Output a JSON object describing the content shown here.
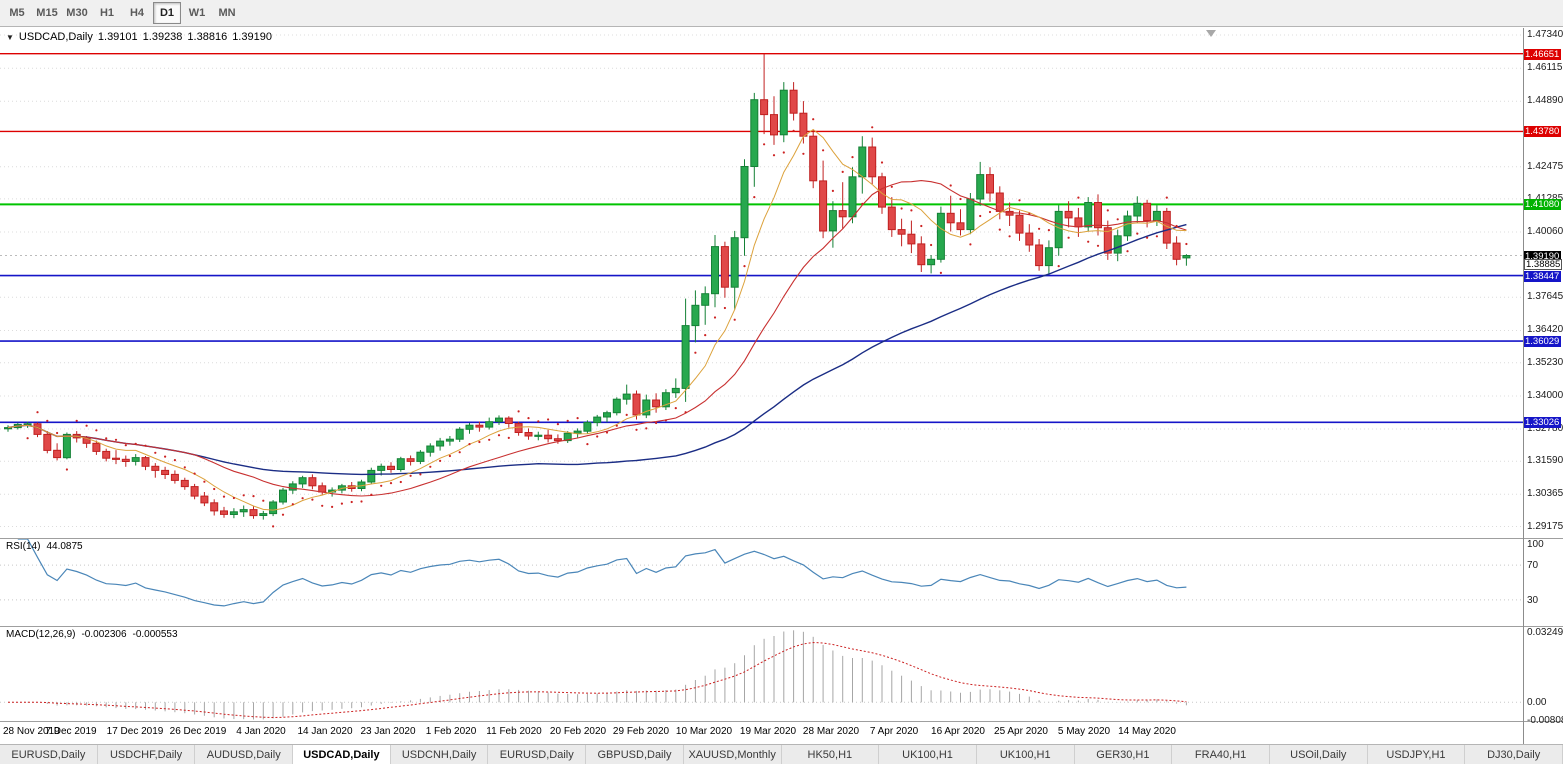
{
  "toolbar": {
    "timeframes": [
      {
        "label": "M5",
        "active": false
      },
      {
        "label": "M15",
        "active": false
      },
      {
        "label": "M30",
        "active": false
      },
      {
        "label": "H1",
        "active": false
      },
      {
        "label": "H4",
        "active": false
      },
      {
        "label": "D1",
        "active": true
      },
      {
        "label": "W1",
        "active": false
      },
      {
        "label": "MN",
        "active": false
      }
    ]
  },
  "chart_header": {
    "dropdown_icon": "▼",
    "symbol": "USDCAD,Daily",
    "open": "1.39101",
    "high": "1.39238",
    "low": "1.38816",
    "close": "1.39190"
  },
  "price_axis": {
    "ticks": [
      "1.47340",
      "1.46115",
      "1.44890",
      "1.42475",
      "1.41285",
      "1.40060",
      "1.37645",
      "1.36420",
      "1.35230",
      "1.34000",
      "1.32780",
      "1.31590",
      "1.30365",
      "1.29175"
    ],
    "tags": [
      {
        "value": 1.46651,
        "label": "1.46651",
        "bg": "#dd0000",
        "fg": "#ffffff"
      },
      {
        "value": 1.4378,
        "label": "1.43780",
        "bg": "#dd0000",
        "fg": "#ffffff"
      },
      {
        "value": 1.4108,
        "label": "1.41080",
        "bg": "#00b200",
        "fg": "#ffffff"
      },
      {
        "value": 1.3919,
        "label": "1.39190",
        "bg": "#000000",
        "fg": "#ffffff"
      },
      {
        "value": 1.38885,
        "label": "1.38885",
        "bg": "#ffffff",
        "fg": "#000000",
        "border": "#555555"
      },
      {
        "value": 1.38447,
        "label": "1.38447",
        "bg": "#1515c8",
        "fg": "#ffffff"
      },
      {
        "value": 1.36029,
        "label": "1.36029",
        "bg": "#1515c8",
        "fg": "#ffffff"
      },
      {
        "value": 1.33026,
        "label": "1.33026",
        "bg": "#1515c8",
        "fg": "#ffffff"
      }
    ]
  },
  "rsi_panel": {
    "name": "RSI(14)",
    "value": "44.0875",
    "axis": [
      "100",
      "70",
      "30"
    ],
    "axis_values": [
      100,
      70,
      30
    ],
    "levels": [
      70,
      30
    ]
  },
  "macd_panel": {
    "name": "MACD(12,26,9)",
    "value_main": "-0.002306",
    "value_signal": "-0.000553",
    "axis": [
      {
        "label": "0.032493",
        "value": 0.032493
      },
      {
        "label": "0.00",
        "value": 0
      },
      {
        "label": "-0.00808",
        "value": -0.00808
      }
    ]
  },
  "date_axis": {
    "labels": [
      "28 Nov 2019",
      "7 Dec 2019",
      "17 Dec 2019",
      "26 Dec 2019",
      "4 Jan 2020",
      "14 Jan 2020",
      "23 Jan 2020",
      "1 Feb 2020",
      "11 Feb 2020",
      "20 Feb 2020",
      "29 Feb 2020",
      "10 Mar 2020",
      "19 Mar 2020",
      "28 Mar 2020",
      "7 Apr 2020",
      "16 Apr 2020",
      "25 Apr 2020",
      "5 May 2020",
      "14 May 2020"
    ]
  },
  "bottom_tabs": {
    "items": [
      {
        "label": "EURUSD,Daily",
        "active": false
      },
      {
        "label": "USDCHF,Daily",
        "active": false
      },
      {
        "label": "AUDUSD,Daily",
        "active": false
      },
      {
        "label": "USDCAD,Daily",
        "active": true
      },
      {
        "label": "USDCNH,Daily",
        "active": false
      },
      {
        "label": "EURUSD,Daily",
        "active": false
      },
      {
        "label": "GBPUSD,Daily",
        "active": false
      },
      {
        "label": "XAUUSD,Monthly",
        "active": false
      },
      {
        "label": "HK50,H1",
        "active": false
      },
      {
        "label": "UK100,H1",
        "active": false
      },
      {
        "label": "UK100,H1",
        "active": false
      },
      {
        "label": "GER30,H1",
        "active": false
      },
      {
        "label": "FRA40,H1",
        "active": false
      },
      {
        "label": "USOil,Daily",
        "active": false
      },
      {
        "label": "USDJPY,H1",
        "active": false
      },
      {
        "label": "DJ30,Daily",
        "active": false
      }
    ]
  },
  "colors": {
    "up": "#27a84e",
    "up_border": "#148136",
    "down": "#e04848",
    "down_border": "#c02020",
    "ma_fast": "#dca23c",
    "ma_mid": "#c83030",
    "ma_slow": "#1b2d85",
    "rsi": "#4a86b8",
    "macd_hist": "#a6a6a6",
    "macd_signal": "#cc2222",
    "grid": "#dcdcdc",
    "bid_line": "#bbbbbb"
  },
  "chart_data": {
    "type": "candlestick",
    "symbol": "USDCAD",
    "timeframe": "Daily",
    "last_ohlc": {
      "open": 1.39101,
      "high": 1.39238,
      "low": 1.38816,
      "close": 1.3919
    },
    "ylim": [
      1.2875,
      1.476
    ],
    "hlines": [
      {
        "value": 1.46651,
        "color": "#dd0000",
        "width": 1.4
      },
      {
        "value": 1.4378,
        "color": "#dd0000",
        "width": 1.4
      },
      {
        "value": 1.4108,
        "color": "#00c400",
        "width": 2
      },
      {
        "value": 1.38447,
        "color": "#1515c8",
        "width": 1.6
      },
      {
        "value": 1.36029,
        "color": "#1515c8",
        "width": 1.6
      },
      {
        "value": 1.33026,
        "color": "#1515c8",
        "width": 1.6
      }
    ],
    "bid_line": {
      "value": 1.3919
    },
    "indicators": {
      "rsi_period": 14,
      "macd": [
        12,
        26,
        9
      ],
      "sma_periods": [
        8,
        20,
        55
      ]
    },
    "candles": [
      [
        "2019-11-28",
        1.328,
        1.3292,
        1.3268,
        1.3283
      ],
      [
        "2019-11-29",
        1.3283,
        1.3301,
        1.3276,
        1.3295
      ],
      [
        "2019-12-02",
        1.3295,
        1.3305,
        1.3282,
        1.3297
      ],
      [
        "2019-12-03",
        1.3297,
        1.3302,
        1.3248,
        1.3258
      ],
      [
        "2019-12-04",
        1.3258,
        1.327,
        1.3188,
        1.3199
      ],
      [
        "2019-12-05",
        1.3199,
        1.3225,
        1.3162,
        1.3172
      ],
      [
        "2019-12-06",
        1.3172,
        1.3265,
        1.3166,
        1.3258
      ],
      [
        "2019-12-09",
        1.3258,
        1.327,
        1.3228,
        1.3245
      ],
      [
        "2019-12-10",
        1.3245,
        1.3252,
        1.3208,
        1.3225
      ],
      [
        "2019-12-11",
        1.3225,
        1.3235,
        1.3182,
        1.3195
      ],
      [
        "2019-12-12",
        1.3195,
        1.3205,
        1.3158,
        1.317
      ],
      [
        "2019-12-13",
        1.317,
        1.32,
        1.3148,
        1.3166
      ],
      [
        "2019-12-16",
        1.3166,
        1.318,
        1.3138,
        1.3158
      ],
      [
        "2019-12-17",
        1.3158,
        1.3185,
        1.3143,
        1.3172
      ],
      [
        "2019-12-18",
        1.3172,
        1.3178,
        1.3126,
        1.314
      ],
      [
        "2019-12-19",
        1.314,
        1.3152,
        1.3098,
        1.3125
      ],
      [
        "2019-12-20",
        1.3125,
        1.3138,
        1.3093,
        1.311
      ],
      [
        "2019-12-23",
        1.311,
        1.3125,
        1.3076,
        1.3088
      ],
      [
        "2019-12-24",
        1.3088,
        1.3098,
        1.3053,
        1.3065
      ],
      [
        "2019-12-26",
        1.3065,
        1.3075,
        1.3018,
        1.303
      ],
      [
        "2019-12-27",
        1.303,
        1.3045,
        1.2993,
        1.3005
      ],
      [
        "2019-12-30",
        1.3005,
        1.3018,
        1.2958,
        1.2975
      ],
      [
        "2019-12-31",
        1.2975,
        1.299,
        1.295,
        1.2962
      ],
      [
        "2020-01-02",
        1.2962,
        1.2985,
        1.2948,
        1.2972
      ],
      [
        "2020-01-03",
        1.2972,
        1.2995,
        1.2953,
        1.298
      ],
      [
        "2020-01-06",
        1.298,
        1.2992,
        1.2946,
        1.2958
      ],
      [
        "2020-01-07",
        1.2958,
        1.2975,
        1.2943,
        1.2965
      ],
      [
        "2020-01-08",
        1.2965,
        1.3015,
        1.2956,
        1.3008
      ],
      [
        "2020-01-09",
        1.3008,
        1.306,
        1.2999,
        1.3052
      ],
      [
        "2020-01-10",
        1.3052,
        1.3085,
        1.3038,
        1.3075
      ],
      [
        "2020-01-13",
        1.3075,
        1.3105,
        1.306,
        1.3098
      ],
      [
        "2020-01-14",
        1.3098,
        1.311,
        1.3055,
        1.3068
      ],
      [
        "2020-01-15",
        1.3068,
        1.308,
        1.3032,
        1.3045
      ],
      [
        "2020-01-16",
        1.3045,
        1.3062,
        1.3028,
        1.3052
      ],
      [
        "2020-01-17",
        1.3052,
        1.3075,
        1.304,
        1.3068
      ],
      [
        "2020-01-20",
        1.3068,
        1.3082,
        1.3046,
        1.3058
      ],
      [
        "2020-01-21",
        1.3058,
        1.309,
        1.3048,
        1.3082
      ],
      [
        "2020-01-22",
        1.3082,
        1.3135,
        1.3073,
        1.3125
      ],
      [
        "2020-01-23",
        1.3125,
        1.315,
        1.3106,
        1.314
      ],
      [
        "2020-01-24",
        1.314,
        1.3155,
        1.3116,
        1.3128
      ],
      [
        "2020-01-27",
        1.3128,
        1.3175,
        1.312,
        1.3168
      ],
      [
        "2020-01-28",
        1.3168,
        1.318,
        1.3143,
        1.3158
      ],
      [
        "2020-01-29",
        1.3158,
        1.32,
        1.3148,
        1.3192
      ],
      [
        "2020-01-30",
        1.3192,
        1.3225,
        1.3176,
        1.3215
      ],
      [
        "2020-01-31",
        1.3215,
        1.3245,
        1.3198,
        1.3233
      ],
      [
        "2020-02-03",
        1.3233,
        1.3252,
        1.3216,
        1.324
      ],
      [
        "2020-02-04",
        1.324,
        1.3285,
        1.323,
        1.3277
      ],
      [
        "2020-02-05",
        1.3277,
        1.33,
        1.326,
        1.3292
      ],
      [
        "2020-02-06",
        1.3292,
        1.3305,
        1.3268,
        1.3285
      ],
      [
        "2020-02-07",
        1.3285,
        1.332,
        1.3276,
        1.3305
      ],
      [
        "2020-02-10",
        1.3305,
        1.3328,
        1.3293,
        1.3318
      ],
      [
        "2020-02-11",
        1.3318,
        1.3325,
        1.3283,
        1.3298
      ],
      [
        "2020-02-12",
        1.3298,
        1.3305,
        1.3253,
        1.3265
      ],
      [
        "2020-02-13",
        1.3265,
        1.328,
        1.3238,
        1.3252
      ],
      [
        "2020-02-14",
        1.3252,
        1.3268,
        1.3236,
        1.3255
      ],
      [
        "2020-02-18",
        1.3255,
        1.3275,
        1.3228,
        1.3242
      ],
      [
        "2020-02-19",
        1.3242,
        1.3258,
        1.3223,
        1.3235
      ],
      [
        "2020-02-20",
        1.3235,
        1.327,
        1.3226,
        1.3262
      ],
      [
        "2020-02-21",
        1.3262,
        1.328,
        1.3246,
        1.327
      ],
      [
        "2020-02-24",
        1.327,
        1.331,
        1.326,
        1.3302
      ],
      [
        "2020-02-25",
        1.3302,
        1.333,
        1.3288,
        1.3322
      ],
      [
        "2020-02-26",
        1.3322,
        1.3345,
        1.3303,
        1.3338
      ],
      [
        "2020-02-27",
        1.3338,
        1.3395,
        1.3328,
        1.3388
      ],
      [
        "2020-02-28",
        1.3388,
        1.3442,
        1.3368,
        1.3407
      ],
      [
        "2020-03-02",
        1.3407,
        1.342,
        1.3313,
        1.333
      ],
      [
        "2020-03-03",
        1.333,
        1.3405,
        1.3318,
        1.3385
      ],
      [
        "2020-03-04",
        1.3385,
        1.341,
        1.3338,
        1.336
      ],
      [
        "2020-03-05",
        1.336,
        1.3425,
        1.3348,
        1.3412
      ],
      [
        "2020-03-06",
        1.3412,
        1.3465,
        1.3393,
        1.3428
      ],
      [
        "2020-03-09",
        1.3428,
        1.376,
        1.3378,
        1.366
      ],
      [
        "2020-03-10",
        1.366,
        1.379,
        1.3598,
        1.3735
      ],
      [
        "2020-03-11",
        1.3735,
        1.3805,
        1.3663,
        1.3778
      ],
      [
        "2020-03-12",
        1.3778,
        1.3995,
        1.3728,
        1.3952
      ],
      [
        "2020-03-13",
        1.3952,
        1.397,
        1.3763,
        1.3802
      ],
      [
        "2020-03-16",
        1.3802,
        1.401,
        1.372,
        1.3985
      ],
      [
        "2020-03-17",
        1.3985,
        1.4275,
        1.3918,
        1.4248
      ],
      [
        "2020-03-18",
        1.4248,
        1.452,
        1.4173,
        1.4495
      ],
      [
        "2020-03-19",
        1.4495,
        1.4665,
        1.4368,
        1.444
      ],
      [
        "2020-03-20",
        1.444,
        1.4508,
        1.4328,
        1.4365
      ],
      [
        "2020-03-23",
        1.4365,
        1.456,
        1.4338,
        1.453
      ],
      [
        "2020-03-24",
        1.453,
        1.456,
        1.4418,
        1.4445
      ],
      [
        "2020-03-25",
        1.4445,
        1.449,
        1.4333,
        1.436
      ],
      [
        "2020-03-26",
        1.436,
        1.4385,
        1.4168,
        1.4195
      ],
      [
        "2020-03-27",
        1.4195,
        1.427,
        1.3983,
        1.401
      ],
      [
        "2020-03-30",
        1.401,
        1.412,
        1.3948,
        1.4085
      ],
      [
        "2020-03-31",
        1.4085,
        1.419,
        1.4018,
        1.4062
      ],
      [
        "2020-04-01",
        1.4062,
        1.4245,
        1.4038,
        1.421
      ],
      [
        "2020-04-02",
        1.421,
        1.436,
        1.4148,
        1.432
      ],
      [
        "2020-04-03",
        1.432,
        1.4355,
        1.4183,
        1.421
      ],
      [
        "2020-04-06",
        1.421,
        1.4225,
        1.4073,
        1.4098
      ],
      [
        "2020-04-07",
        1.4098,
        1.4135,
        1.3988,
        1.4015
      ],
      [
        "2020-04-08",
        1.4015,
        1.4055,
        1.3953,
        1.3998
      ],
      [
        "2020-04-09",
        1.3998,
        1.4048,
        1.3928,
        1.3962
      ],
      [
        "2020-04-13",
        1.3962,
        1.399,
        1.3858,
        1.3885
      ],
      [
        "2020-04-14",
        1.3885,
        1.392,
        1.3853,
        1.3905
      ],
      [
        "2020-04-15",
        1.3905,
        1.41,
        1.3893,
        1.4075
      ],
      [
        "2020-04-16",
        1.4075,
        1.414,
        1.4008,
        1.404
      ],
      [
        "2020-04-17",
        1.404,
        1.409,
        1.3993,
        1.4015
      ],
      [
        "2020-04-20",
        1.4015,
        1.415,
        1.3998,
        1.4128
      ],
      [
        "2020-04-21",
        1.4128,
        1.4265,
        1.4103,
        1.4218
      ],
      [
        "2020-04-22",
        1.4218,
        1.4245,
        1.4118,
        1.415
      ],
      [
        "2020-04-23",
        1.415,
        1.4175,
        1.4053,
        1.4082
      ],
      [
        "2020-04-24",
        1.4082,
        1.4115,
        1.4028,
        1.4068
      ],
      [
        "2020-04-27",
        1.4068,
        1.4085,
        1.3973,
        1.4002
      ],
      [
        "2020-04-28",
        1.4002,
        1.4035,
        1.3933,
        1.3958
      ],
      [
        "2020-04-29",
        1.3958,
        1.398,
        1.3863,
        1.3882
      ],
      [
        "2020-04-30",
        1.3882,
        1.3975,
        1.3848,
        1.3948
      ],
      [
        "2020-05-01",
        1.3948,
        1.4105,
        1.3918,
        1.4082
      ],
      [
        "2020-05-04",
        1.4082,
        1.412,
        1.4023,
        1.4058
      ],
      [
        "2020-05-05",
        1.4058,
        1.4095,
        1.3988,
        1.4025
      ],
      [
        "2020-05-06",
        1.4025,
        1.4135,
        1.4008,
        1.4115
      ],
      [
        "2020-05-07",
        1.4115,
        1.4145,
        1.3993,
        1.4022
      ],
      [
        "2020-05-08",
        1.4022,
        1.4048,
        1.3903,
        1.3928
      ],
      [
        "2020-05-11",
        1.3928,
        1.4015,
        1.3898,
        1.3992
      ],
      [
        "2020-05-12",
        1.3992,
        1.4085,
        1.3973,
        1.4065
      ],
      [
        "2020-05-13",
        1.4065,
        1.4138,
        1.4038,
        1.4112
      ],
      [
        "2020-05-14",
        1.4112,
        1.4125,
        1.4023,
        1.4048
      ],
      [
        "2020-05-15",
        1.4048,
        1.4105,
        1.4028,
        1.4082
      ],
      [
        "2020-05-18",
        1.4082,
        1.4095,
        1.3943,
        1.3965
      ],
      [
        "2020-05-19",
        1.3965,
        1.399,
        1.3883,
        1.3905
      ],
      [
        "2020-05-20",
        1.39101,
        1.39238,
        1.38816,
        1.3919
      ]
    ]
  }
}
